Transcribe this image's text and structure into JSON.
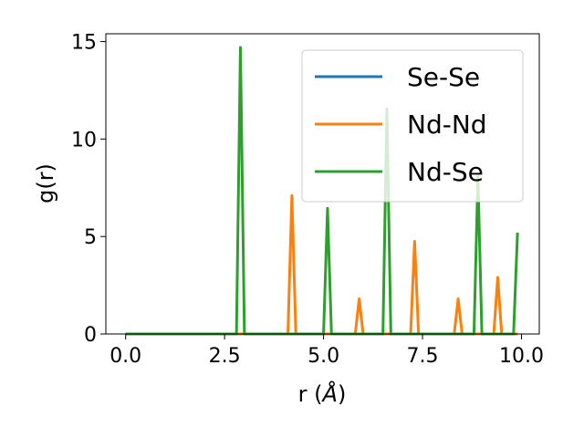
{
  "chart_data": {
    "type": "line",
    "xlabel_prefix": "r (",
    "xlabel_unit": "Å",
    "xlabel_suffix": ")",
    "ylabel": "g(r)",
    "xlim": [
      -0.5,
      10.45
    ],
    "ylim": [
      0,
      15.4
    ],
    "xticks": [
      0.0,
      2.5,
      5.0,
      7.5,
      10.0
    ],
    "xtick_labels": [
      "0.0",
      "2.5",
      "5.0",
      "7.5",
      "10.0"
    ],
    "yticks": [
      0,
      5,
      10,
      15
    ],
    "ytick_labels": [
      "0",
      "5",
      "10",
      "15"
    ],
    "grid": false,
    "legend_position": "top-right",
    "series": [
      {
        "name": "Se-Se",
        "color": "#1f77b4",
        "points": [
          [
            0.0,
            0
          ],
          [
            9.9,
            0
          ]
        ]
      },
      {
        "name": "Nd-Nd",
        "color": "#ff7f0e",
        "points": [
          [
            0.0,
            0
          ],
          [
            4.1,
            0
          ],
          [
            4.2,
            7.1
          ],
          [
            4.3,
            0
          ],
          [
            5.8,
            0
          ],
          [
            5.9,
            1.8
          ],
          [
            6.0,
            0
          ],
          [
            7.2,
            0
          ],
          [
            7.3,
            4.75
          ],
          [
            7.4,
            0
          ],
          [
            8.3,
            0
          ],
          [
            8.4,
            1.8
          ],
          [
            8.5,
            0
          ],
          [
            9.3,
            0
          ],
          [
            9.4,
            2.9
          ],
          [
            9.5,
            0
          ],
          [
            9.9,
            0
          ]
        ]
      },
      {
        "name": "Nd-Se",
        "color": "#2ca02c",
        "points": [
          [
            0.0,
            0
          ],
          [
            2.8,
            0
          ],
          [
            2.9,
            14.7
          ],
          [
            3.0,
            0
          ],
          [
            5.0,
            0
          ],
          [
            5.1,
            6.45
          ],
          [
            5.2,
            0
          ],
          [
            6.5,
            0
          ],
          [
            6.6,
            11.55
          ],
          [
            6.7,
            0
          ],
          [
            8.8,
            0
          ],
          [
            8.9,
            8.1
          ],
          [
            9.0,
            0
          ],
          [
            9.8,
            0
          ],
          [
            9.9,
            5.2
          ]
        ]
      }
    ]
  }
}
